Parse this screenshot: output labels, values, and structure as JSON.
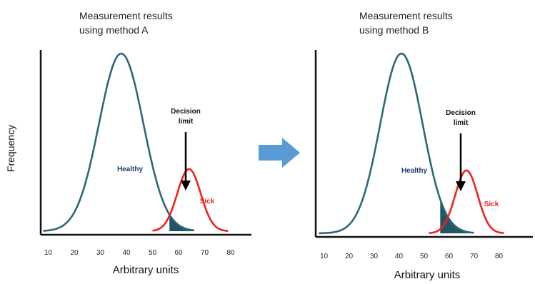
{
  "frequency_label": "Frequency",
  "arrow": {
    "color": "#5b9bd5"
  },
  "colors": {
    "healthy": "#2e6878",
    "sick": "#ee2222",
    "overlap_fill": "#245564",
    "healthy_label": "#1f3d6e",
    "sick_label": "#ee2222"
  },
  "chart_data": [
    {
      "type": "area",
      "title": "Measurement results using method A",
      "title_lines": [
        "Measurement results",
        "using method A"
      ],
      "xlabel": "Arbitrary units",
      "ylabel": "Frequency",
      "xlim": [
        8,
        82
      ],
      "xticks": [
        "10",
        "20",
        "30",
        "40",
        "50",
        "60",
        "70",
        "80"
      ],
      "decision": {
        "value": 56.5,
        "lines": [
          "Decision",
          "limit"
        ]
      },
      "series": [
        {
          "name": "Healthy",
          "mean": 38,
          "sd": 8.5,
          "peak": 1.0,
          "range": [
            8,
            66
          ]
        },
        {
          "name": "Sick",
          "mean": 64,
          "sd": 4.5,
          "peak": 0.35,
          "range": [
            50,
            79
          ]
        }
      ]
    },
    {
      "type": "area",
      "title": "Measurement results using method B",
      "title_lines": [
        "Measurement results",
        "using method B"
      ],
      "xlabel": "Arbitrary units",
      "ylabel": "",
      "xlim": [
        8,
        82
      ],
      "xticks": [
        "10",
        "20",
        "30",
        "40",
        "50",
        "60",
        "70",
        "80"
      ],
      "decision": {
        "value": 56.5,
        "lines": [
          "Decision",
          "limit"
        ]
      },
      "series": [
        {
          "name": "Healthy",
          "mean": 41,
          "sd": 8.5,
          "peak": 1.0,
          "range": [
            8,
            70
          ]
        },
        {
          "name": "Sick",
          "mean": 67,
          "sd": 4.5,
          "peak": 0.35,
          "range": [
            52,
            82
          ]
        }
      ]
    }
  ]
}
